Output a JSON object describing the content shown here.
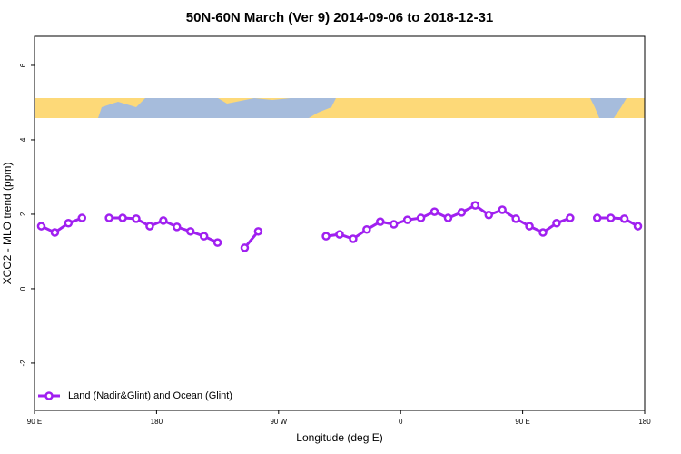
{
  "chart_data": {
    "type": "line",
    "title": "50N-60N March (Ver 9)   2014-09-06 to 2018-12-31",
    "x_label": "Longitude (deg E)",
    "y_label": "XCO2 - MLO trend (ppm)",
    "x": [
      95,
      105,
      115,
      125,
      135,
      145,
      155,
      165,
      175,
      185,
      195,
      205,
      215,
      225,
      235,
      245,
      255,
      265,
      275,
      285,
      295,
      305,
      315,
      325,
      335,
      345,
      355,
      365,
      375,
      385,
      395,
      405,
      415,
      425,
      435,
      445,
      455,
      465,
      475,
      485,
      495,
      505,
      515,
      525,
      535
    ],
    "series": [
      {
        "name": "Land (Nadir&Glint) and Ocean (Glint)",
        "color": "#a020f0",
        "values": [
          1.68,
          1.51,
          1.76,
          1.9,
          null,
          1.9,
          1.9,
          1.88,
          1.68,
          1.83,
          1.66,
          1.54,
          1.41,
          1.24,
          null,
          1.1,
          1.54,
          null,
          null,
          null,
          null,
          1.41,
          1.46,
          1.34,
          1.59,
          1.8,
          1.73,
          1.85,
          1.9,
          2.07,
          1.9,
          2.05,
          2.24,
          1.98,
          2.12,
          1.88,
          1.68,
          1.51,
          1.76,
          1.9,
          null,
          1.9,
          1.9,
          1.88,
          1.68
        ]
      }
    ],
    "xlim": [
      90,
      540
    ],
    "xticks": [
      {
        "value": 90,
        "label": "90 E"
      },
      180,
      {
        "value": 270,
        "label": "90 W"
      },
      {
        "value": 360,
        "label": "0"
      },
      {
        "value": 450,
        "label": "90 E"
      },
      {
        "value": 540,
        "label": "180"
      }
    ],
    "ylim": [
      -3.27,
      6.78
    ],
    "yticks": [
      -2,
      0,
      2,
      4,
      6
    ],
    "legend": "bottom-left"
  }
}
